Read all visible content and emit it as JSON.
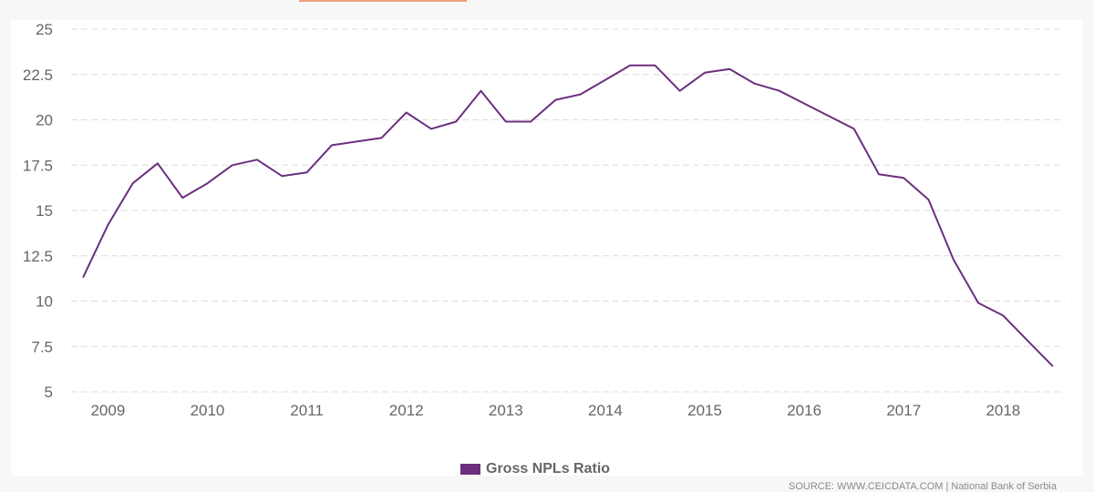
{
  "chart_data": {
    "type": "line",
    "title": "",
    "xlabel": "",
    "ylabel": "",
    "ylim": [
      5,
      25
    ],
    "yticks": [
      "5",
      "7.5",
      "10",
      "12.5",
      "15",
      "17.5",
      "20",
      "22.5",
      "25"
    ],
    "xticks": [
      "2009",
      "2010",
      "2011",
      "2012",
      "2013",
      "2014",
      "2015",
      "2016",
      "2017",
      "2018"
    ],
    "grid": "horizontal dashed",
    "legend_position": "bottom-center",
    "series": [
      {
        "name": "Gross NPLs Ratio",
        "color": "#6b2f7e",
        "x": [
          2008.75,
          2009.0,
          2009.25,
          2009.5,
          2009.75,
          2010.0,
          2010.25,
          2010.5,
          2010.75,
          2011.0,
          2011.25,
          2011.5,
          2011.75,
          2012.0,
          2012.25,
          2012.5,
          2012.75,
          2013.0,
          2013.25,
          2013.5,
          2013.75,
          2014.0,
          2014.25,
          2014.5,
          2014.75,
          2015.0,
          2015.25,
          2015.5,
          2015.75,
          2016.0,
          2016.25,
          2016.5,
          2016.75,
          2017.0,
          2017.25,
          2017.5,
          2017.75,
          2018.0,
          2018.25,
          2018.5
        ],
        "values": [
          11.3,
          14.2,
          16.5,
          17.6,
          15.7,
          16.5,
          17.5,
          17.8,
          16.9,
          17.1,
          18.6,
          18.8,
          19.0,
          20.4,
          19.5,
          19.9,
          21.6,
          19.9,
          19.9,
          21.1,
          21.4,
          22.2,
          23.0,
          23.0,
          21.6,
          22.6,
          22.8,
          22.0,
          21.6,
          20.9,
          20.2,
          19.5,
          17.0,
          16.8,
          15.6,
          12.3,
          9.9,
          9.2,
          7.8,
          6.4
        ]
      }
    ],
    "source": "SOURCE: WWW.CEICDATA.COM | National Bank of Serbia"
  }
}
